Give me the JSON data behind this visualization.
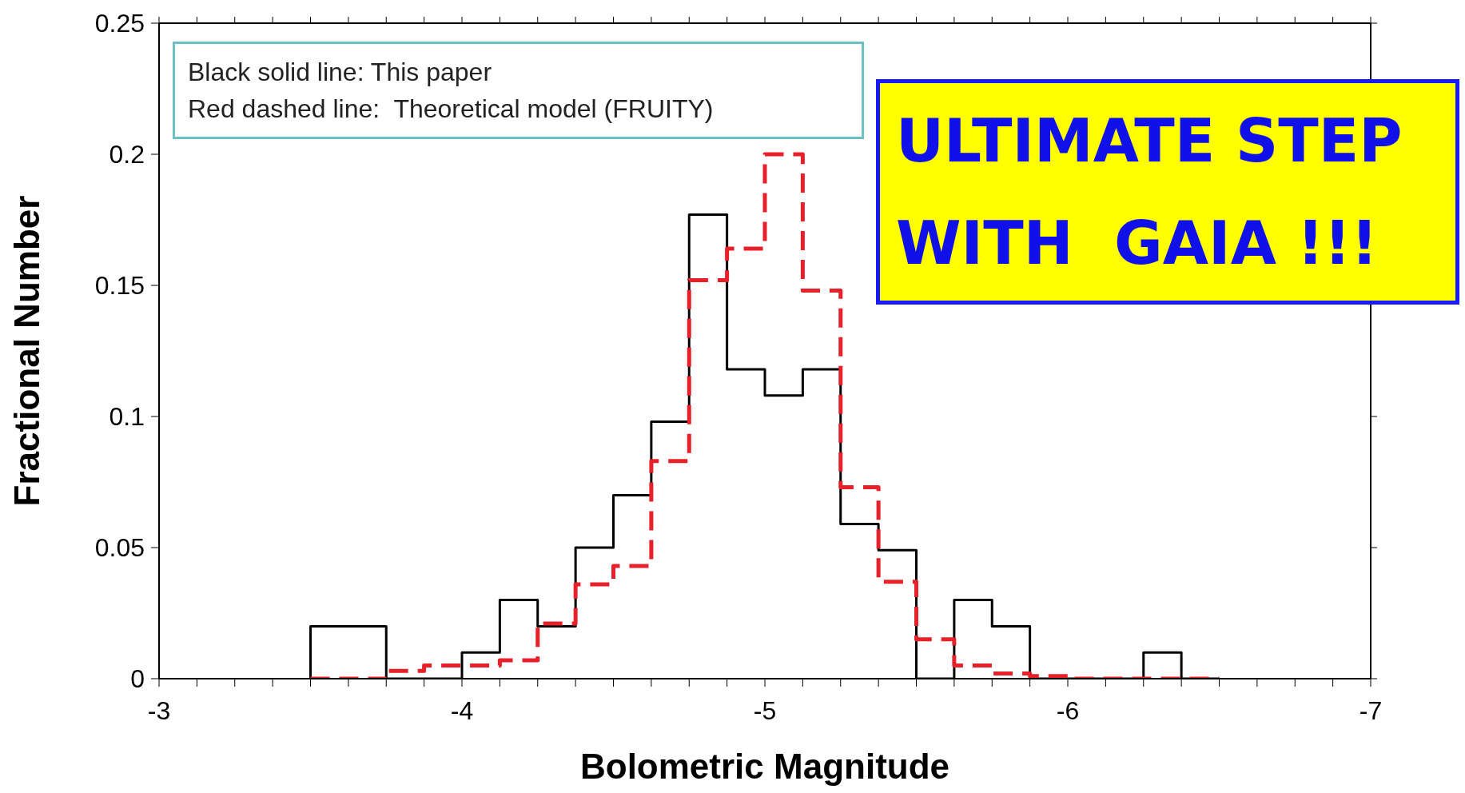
{
  "chart_data": {
    "type": "histogram",
    "xlabel": "Bolometric Magnitude",
    "ylabel": "Fractional Number",
    "bins": [
      -3.5,
      -3.625,
      -3.75,
      -3.875,
      -4,
      -4.125,
      -4.25,
      -4.375,
      -4.5,
      -4.625,
      -4.75,
      -4.875,
      -5,
      -5.125,
      -5.25,
      -5.375,
      -5.5,
      -5.625,
      -5.75,
      -5.875,
      -6,
      -6.125,
      -6.25,
      -6.375,
      -6.5
    ],
    "series": [
      {
        "color": "#000000",
        "line_style": "solid",
        "values": [
          0.02,
          0.02,
          0,
          0,
          0.01,
          0.03,
          0.02,
          0.05,
          0.07,
          0.098,
          0.177,
          0.118,
          0.108,
          0.118,
          0.059,
          0.049,
          0,
          0.03,
          0.02,
          0,
          0,
          0,
          0.01,
          0
        ]
      },
      {
        "color": "#e8202a",
        "line_style": "dashed",
        "values": [
          0,
          0,
          0.003,
          0.005,
          0.005,
          0.007,
          0.021,
          0.036,
          0.043,
          0.083,
          0.152,
          0.164,
          0.2,
          0.148,
          0.073,
          0.037,
          0.015,
          0.005,
          0.002,
          0.001,
          0,
          0,
          0,
          0
        ]
      }
    ],
    "xlim": [
      -3,
      -7
    ],
    "xticks": [
      -3,
      {
        "value": -3.125,
        "label": null
      },
      {
        "value": -3.25,
        "label": null
      },
      {
        "value": -3.375,
        "label": null
      },
      {
        "value": -3.5,
        "label": null
      },
      {
        "value": -3.625,
        "label": null
      },
      {
        "value": -3.75,
        "label": null
      },
      {
        "value": -3.875,
        "label": null
      },
      -4,
      {
        "value": -4.125,
        "label": null
      },
      {
        "value": -4.25,
        "label": null
      },
      {
        "value": -4.375,
        "label": null
      },
      {
        "value": -4.5,
        "label": null
      },
      {
        "value": -4.625,
        "label": null
      },
      {
        "value": -4.75,
        "label": null
      },
      {
        "value": -4.875,
        "label": null
      },
      -5,
      {
        "value": -5.125,
        "label": null
      },
      {
        "value": -5.25,
        "label": null
      },
      {
        "value": -5.375,
        "label": null
      },
      {
        "value": -5.5,
        "label": null
      },
      {
        "value": -5.625,
        "label": null
      },
      {
        "value": -5.75,
        "label": null
      },
      {
        "value": -5.875,
        "label": null
      },
      -6,
      {
        "value": -6.125,
        "label": null
      },
      {
        "value": -6.25,
        "label": null
      },
      {
        "value": -6.375,
        "label": null
      },
      {
        "value": -6.5,
        "label": null
      },
      {
        "value": -6.625,
        "label": null
      },
      {
        "value": -6.75,
        "label": null
      },
      {
        "value": -6.875,
        "label": null
      },
      -7
    ],
    "ylim": [
      0,
      0.25
    ],
    "yticks": [
      0,
      0.05,
      0.1,
      0.15,
      0.2,
      0.25
    ],
    "grid": false,
    "annotations": [
      "Black solid line: This paper",
      "Red dashed line:  Theoretical model (FRUITY)",
      "ULTIMATE STEP\nWITH  GAIA !!!"
    ]
  }
}
